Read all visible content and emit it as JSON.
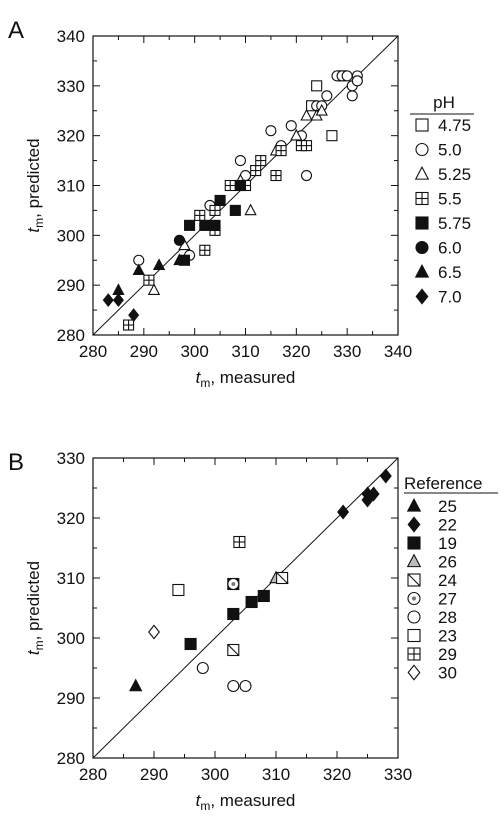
{
  "chart_data": [
    {
      "type": "scatter",
      "panel_label": "A",
      "xlabel_main": "t",
      "xlabel_sub": "m",
      "xlabel_rest": ", measured",
      "ylabel_main": "t",
      "ylabel_sub": "m",
      "ylabel_rest": ", predicted",
      "xlim": [
        280,
        340
      ],
      "ylim": [
        280,
        340
      ],
      "xticks": [
        280,
        290,
        300,
        310,
        320,
        330,
        340
      ],
      "yticks": [
        280,
        290,
        300,
        310,
        320,
        330,
        340
      ],
      "diagonal": true,
      "legend_title": "pH",
      "legend_placement": "right",
      "series": [
        {
          "name": "4.75",
          "marker": "square-open",
          "points": [
            [
              324,
              330
            ],
            [
              327,
              320
            ],
            [
              323,
              326
            ],
            [
              329,
              332
            ]
          ]
        },
        {
          "name": "5.0",
          "marker": "circle-open",
          "points": [
            [
              289,
              295
            ],
            [
              299,
              296
            ],
            [
              303,
              306
            ],
            [
              309,
              315
            ],
            [
              310,
              312
            ],
            [
              315,
              321
            ],
            [
              317,
              318
            ],
            [
              319,
              322
            ],
            [
              321,
              320
            ],
            [
              322,
              312
            ],
            [
              324,
              326
            ],
            [
              326,
              328
            ],
            [
              328,
              332
            ],
            [
              329,
              332
            ],
            [
              330,
              332
            ],
            [
              331,
              328
            ],
            [
              331,
              330
            ],
            [
              332,
              332
            ],
            [
              332,
              331
            ],
            [
              325,
              326
            ]
          ]
        },
        {
          "name": "5.25",
          "marker": "triangle-open",
          "points": [
            [
              292,
              289
            ],
            [
              298,
              298
            ],
            [
              309,
              311
            ],
            [
              311,
              305
            ],
            [
              316,
              317
            ],
            [
              320,
              320
            ],
            [
              322,
              324
            ],
            [
              324,
              324
            ],
            [
              325,
              325
            ]
          ]
        },
        {
          "name": "5.5",
          "marker": "square-cross",
          "points": [
            [
              287,
              282
            ],
            [
              291,
              291
            ],
            [
              301,
              304
            ],
            [
              302,
              297
            ],
            [
              304,
              305
            ],
            [
              307,
              310
            ],
            [
              310,
              310
            ],
            [
              312,
              313
            ],
            [
              313,
              315
            ],
            [
              316,
              312
            ],
            [
              317,
              317
            ],
            [
              321,
              318
            ],
            [
              322,
              318
            ],
            [
              304,
              301
            ]
          ]
        },
        {
          "name": "5.75",
          "marker": "square-filled",
          "points": [
            [
              298,
              295
            ],
            [
              299,
              302
            ],
            [
              302,
              302
            ],
            [
              304,
              302
            ],
            [
              305,
              307
            ],
            [
              308,
              305
            ],
            [
              309,
              310
            ]
          ]
        },
        {
          "name": "6.0",
          "marker": "circle-filled",
          "points": [
            [
              297,
              299
            ],
            [
              302,
              302
            ]
          ]
        },
        {
          "name": "6.5",
          "marker": "triangle-filled",
          "points": [
            [
              285,
              289
            ],
            [
              289,
              293
            ],
            [
              293,
              294
            ],
            [
              297,
              295
            ]
          ]
        },
        {
          "name": "7.0",
          "marker": "diamond-filled",
          "points": [
            [
              283,
              287
            ],
            [
              285,
              287
            ],
            [
              288,
              284
            ]
          ]
        }
      ]
    },
    {
      "type": "scatter",
      "panel_label": "B",
      "xlabel_main": "t",
      "xlabel_sub": "m",
      "xlabel_rest": ", measured",
      "ylabel_main": "t",
      "ylabel_sub": "m",
      "ylabel_rest": ", predicted",
      "xlim": [
        280,
        330
      ],
      "ylim": [
        280,
        330
      ],
      "xticks": [
        280,
        290,
        300,
        310,
        320,
        330
      ],
      "yticks": [
        280,
        290,
        300,
        310,
        320,
        330
      ],
      "diagonal": true,
      "legend_title": "Reference",
      "legend_placement": "right",
      "series": [
        {
          "name": "25",
          "marker": "triangle-filled",
          "points": [
            [
              287,
              292
            ]
          ]
        },
        {
          "name": "22",
          "marker": "diamond-filled",
          "points": [
            [
              321,
              321
            ],
            [
              325,
              323
            ],
            [
              325,
              324
            ],
            [
              326,
              324
            ],
            [
              328,
              327
            ]
          ]
        },
        {
          "name": "19",
          "marker": "square-filled",
          "points": [
            [
              296,
              299
            ],
            [
              303,
              304
            ],
            [
              303,
              309
            ],
            [
              306,
              306
            ],
            [
              308,
              307
            ]
          ]
        },
        {
          "name": "26",
          "marker": "triangle-shaded",
          "points": [
            [
              310,
              310
            ],
            [
              311,
              310
            ]
          ]
        },
        {
          "name": "24",
          "marker": "square-slash",
          "points": [
            [
              303,
              298
            ],
            [
              311,
              310
            ]
          ]
        },
        {
          "name": "27",
          "marker": "circle-dotted",
          "points": [
            [
              303,
              309
            ]
          ]
        },
        {
          "name": "28",
          "marker": "circle-open",
          "points": [
            [
              298,
              295
            ],
            [
              303,
              292
            ],
            [
              305,
              292
            ]
          ]
        },
        {
          "name": "23",
          "marker": "square-open",
          "points": [
            [
              294,
              308
            ]
          ]
        },
        {
          "name": "29",
          "marker": "square-cross",
          "points": [
            [
              304,
              316
            ]
          ]
        },
        {
          "name": "30",
          "marker": "diamond-open",
          "points": [
            [
              290,
              301
            ]
          ]
        }
      ]
    }
  ]
}
